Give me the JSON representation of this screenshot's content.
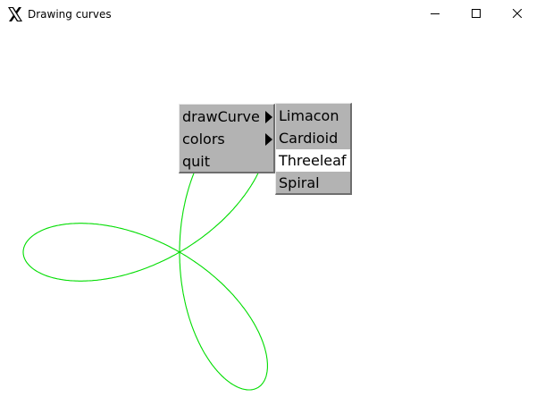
{
  "window": {
    "title": "Drawing curves",
    "icon": "x11-icon",
    "controls": [
      "minimize-icon",
      "maximize-icon",
      "close-icon"
    ]
  },
  "main_menu": {
    "items": [
      {
        "label": "drawCurve",
        "has_submenu": true,
        "highlighted": true
      },
      {
        "label": "colors",
        "has_submenu": true,
        "highlighted": false
      },
      {
        "label": "quit",
        "has_submenu": false,
        "highlighted": false
      }
    ]
  },
  "submenu": {
    "parent": "drawCurve",
    "items": [
      {
        "label": "Limacon",
        "highlighted": false
      },
      {
        "label": "Cardioid",
        "highlighted": false
      },
      {
        "label": "Threeleaf",
        "highlighted": true
      },
      {
        "label": "Spiral",
        "highlighted": false
      }
    ]
  },
  "curve": {
    "shape": "three-leaf rose",
    "petals": 3,
    "color": "#00dd00"
  },
  "colors": {
    "menu_background": "#b3b3b3",
    "menu_highlight": "#ffffff",
    "canvas_background": "#ffffff"
  }
}
